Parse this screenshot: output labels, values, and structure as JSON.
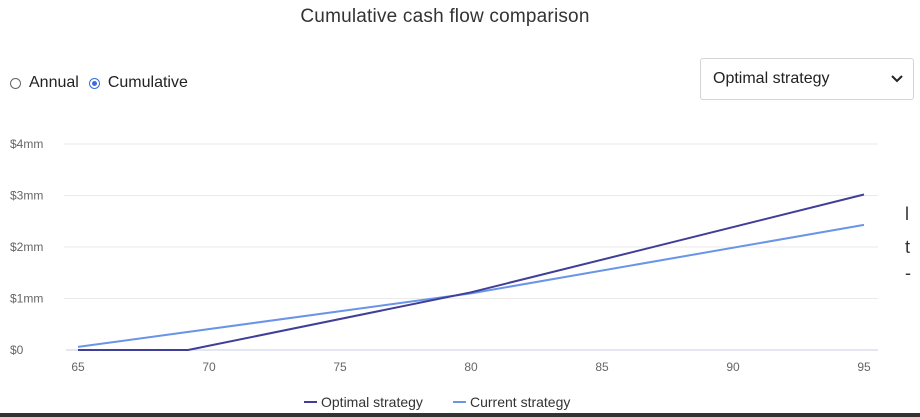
{
  "header": {
    "title": "Cumulative cash flow comparison"
  },
  "view_toggle": {
    "options": [
      {
        "label": "Annual",
        "selected": false
      },
      {
        "label": "Cumulative",
        "selected": true
      }
    ]
  },
  "strategy_select": {
    "value": "Optimal strategy"
  },
  "side_fragments": [
    "l",
    "t",
    "-"
  ],
  "colors": {
    "optimal": "#3f3f99",
    "current": "#6a94e8",
    "accent": "#3b6fd8"
  },
  "chart_data": {
    "type": "line",
    "title": "Cumulative cash flow comparison",
    "xlabel": "",
    "ylabel": "",
    "x_ticks": [
      65,
      70,
      75,
      80,
      85,
      90,
      95
    ],
    "y_ticks": [
      0,
      1,
      2,
      3,
      4
    ],
    "y_tick_labels": [
      "$0",
      "$1mm",
      "$2mm",
      "$3mm",
      "$4mm"
    ],
    "xlim": [
      65,
      95
    ],
    "ylim": [
      0,
      4
    ],
    "grid": true,
    "legend_position": "bottom",
    "series": [
      {
        "name": "Optimal strategy",
        "color": "#3f3f99",
        "points": [
          [
            65,
            0.0
          ],
          [
            69.2,
            0.0
          ],
          [
            80,
            1.12
          ],
          [
            95,
            3.02
          ]
        ]
      },
      {
        "name": "Current strategy",
        "color": "#6a94e8",
        "points": [
          [
            65,
            0.06
          ],
          [
            80,
            1.1
          ],
          [
            95,
            2.43
          ]
        ]
      }
    ]
  }
}
